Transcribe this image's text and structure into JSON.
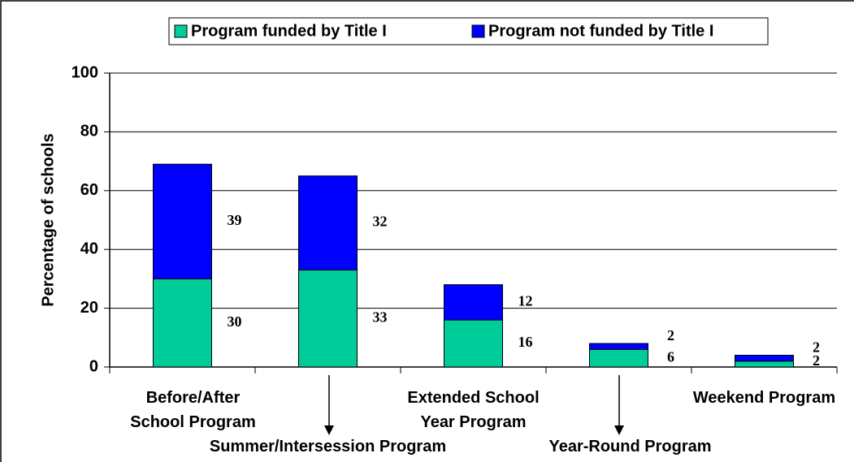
{
  "chart_data": {
    "type": "bar",
    "stacked": true,
    "categories": [
      "Before/After School Program",
      "Summer/Intersession Program",
      "Extended School Year Program",
      "Year-Round Program",
      "Weekend Program"
    ],
    "series": [
      {
        "name": "Program funded by Title I",
        "color": "#00cc99",
        "values": [
          30,
          33,
          16,
          6,
          2
        ]
      },
      {
        "name": "Program not funded by Title I",
        "color": "#0000ff",
        "values": [
          39,
          32,
          12,
          2,
          2
        ]
      }
    ],
    "ylabel": "Percentage of schools",
    "ylim": [
      0,
      100
    ],
    "yticks": [
      0,
      20,
      40,
      60,
      80,
      100
    ],
    "grid": true,
    "legend": "top"
  }
}
